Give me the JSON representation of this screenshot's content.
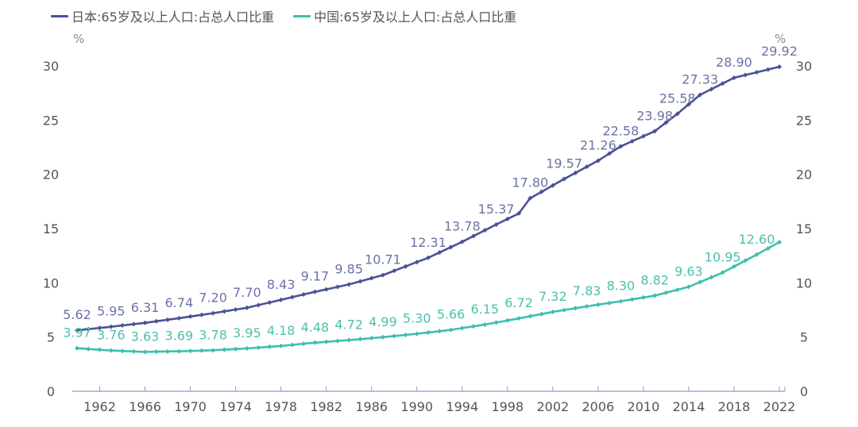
{
  "chart_data": {
    "type": "line",
    "title": "",
    "xlabel": "",
    "ylabel": "%",
    "ylabel_right": "%",
    "ylim": [
      0,
      30
    ],
    "yticks": [
      0,
      5,
      10,
      15,
      20,
      25,
      30
    ],
    "xlim": [
      1960,
      2022
    ],
    "xticks": [
      1962,
      1966,
      1970,
      1974,
      1978,
      1982,
      1986,
      1990,
      1994,
      1998,
      2002,
      2006,
      2010,
      2014,
      2018,
      2022
    ],
    "legend_position": "top-left",
    "grid": false,
    "series": [
      {
        "name": "日本:65岁及以上人口:占总人口比重",
        "color": "#4a5296",
        "label_color": "#6b72a8",
        "anchors": [
          {
            "x": 1960,
            "y": 5.62
          },
          {
            "x": 1963,
            "y": 5.95
          },
          {
            "x": 1966,
            "y": 6.31
          },
          {
            "x": 1969,
            "y": 6.74
          },
          {
            "x": 1972,
            "y": 7.2
          },
          {
            "x": 1975,
            "y": 7.7
          },
          {
            "x": 1978,
            "y": 8.43
          },
          {
            "x": 1981,
            "y": 9.17
          },
          {
            "x": 1984,
            "y": 9.85
          },
          {
            "x": 1987,
            "y": 10.71
          },
          {
            "x": 1991,
            "y": 12.31
          },
          {
            "x": 1994,
            "y": 13.78
          },
          {
            "x": 1997,
            "y": 15.37
          },
          {
            "x": 1999,
            "y": 16.4
          },
          {
            "x": 2000,
            "y": 17.8
          },
          {
            "x": 2003,
            "y": 19.57
          },
          {
            "x": 2006,
            "y": 21.26
          },
          {
            "x": 2008,
            "y": 22.58
          },
          {
            "x": 2011,
            "y": 23.98
          },
          {
            "x": 2013,
            "y": 25.58
          },
          {
            "x": 2015,
            "y": 27.33
          },
          {
            "x": 2018,
            "y": 28.9
          },
          {
            "x": 2022,
            "y": 29.92
          }
        ],
        "labels": [
          {
            "x": 1960,
            "text": "5.62"
          },
          {
            "x": 1963,
            "text": "5.95"
          },
          {
            "x": 1966,
            "text": "6.31"
          },
          {
            "x": 1969,
            "text": "6.74"
          },
          {
            "x": 1972,
            "text": "7.20"
          },
          {
            "x": 1975,
            "text": "7.70"
          },
          {
            "x": 1978,
            "text": "8.43"
          },
          {
            "x": 1981,
            "text": "9.17"
          },
          {
            "x": 1984,
            "text": "9.85"
          },
          {
            "x": 1987,
            "text": "10.71"
          },
          {
            "x": 1991,
            "text": "12.31"
          },
          {
            "x": 1994,
            "text": "13.78"
          },
          {
            "x": 1997,
            "text": "15.37"
          },
          {
            "x": 2000,
            "text": "17.80"
          },
          {
            "x": 2003,
            "text": "19.57"
          },
          {
            "x": 2006,
            "text": "21.26"
          },
          {
            "x": 2008,
            "text": "22.58"
          },
          {
            "x": 2011,
            "text": "23.98"
          },
          {
            "x": 2013,
            "text": "25.58"
          },
          {
            "x": 2015,
            "text": "27.33"
          },
          {
            "x": 2018,
            "text": "28.90"
          },
          {
            "x": 2022,
            "text": "29.92"
          }
        ]
      },
      {
        "name": "中国:65岁及以上人口:占总人口比重",
        "color": "#3cbfae",
        "label_color": "#4cc0ad",
        "anchors": [
          {
            "x": 1960,
            "y": 3.97
          },
          {
            "x": 1963,
            "y": 3.76
          },
          {
            "x": 1966,
            "y": 3.63
          },
          {
            "x": 1969,
            "y": 3.69
          },
          {
            "x": 1972,
            "y": 3.78
          },
          {
            "x": 1975,
            "y": 3.95
          },
          {
            "x": 1978,
            "y": 4.18
          },
          {
            "x": 1981,
            "y": 4.48
          },
          {
            "x": 1984,
            "y": 4.72
          },
          {
            "x": 1987,
            "y": 4.99
          },
          {
            "x": 1990,
            "y": 5.3
          },
          {
            "x": 1993,
            "y": 5.66
          },
          {
            "x": 1996,
            "y": 6.15
          },
          {
            "x": 1999,
            "y": 6.72
          },
          {
            "x": 2002,
            "y": 7.32
          },
          {
            "x": 2005,
            "y": 7.83
          },
          {
            "x": 2008,
            "y": 8.3
          },
          {
            "x": 2011,
            "y": 8.82
          },
          {
            "x": 2014,
            "y": 9.63
          },
          {
            "x": 2017,
            "y": 10.95
          },
          {
            "x": 2020,
            "y": 12.6
          },
          {
            "x": 2022,
            "y": 13.75
          }
        ],
        "labels": [
          {
            "x": 1960,
            "text": "3.97"
          },
          {
            "x": 1963,
            "text": "3.76"
          },
          {
            "x": 1966,
            "text": "3.63"
          },
          {
            "x": 1969,
            "text": "3.69"
          },
          {
            "x": 1972,
            "text": "3.78"
          },
          {
            "x": 1975,
            "text": "3.95"
          },
          {
            "x": 1978,
            "text": "4.18"
          },
          {
            "x": 1981,
            "text": "4.48"
          },
          {
            "x": 1984,
            "text": "4.72"
          },
          {
            "x": 1987,
            "text": "4.99"
          },
          {
            "x": 1990,
            "text": "5.30"
          },
          {
            "x": 1993,
            "text": "5.66"
          },
          {
            "x": 1996,
            "text": "6.15"
          },
          {
            "x": 1999,
            "text": "6.72"
          },
          {
            "x": 2002,
            "text": "7.32"
          },
          {
            "x": 2005,
            "text": "7.83"
          },
          {
            "x": 2008,
            "text": "8.30"
          },
          {
            "x": 2011,
            "text": "8.82"
          },
          {
            "x": 2014,
            "text": "9.63"
          },
          {
            "x": 2017,
            "text": "10.95"
          },
          {
            "x": 2020,
            "text": "12.60"
          }
        ]
      }
    ]
  }
}
